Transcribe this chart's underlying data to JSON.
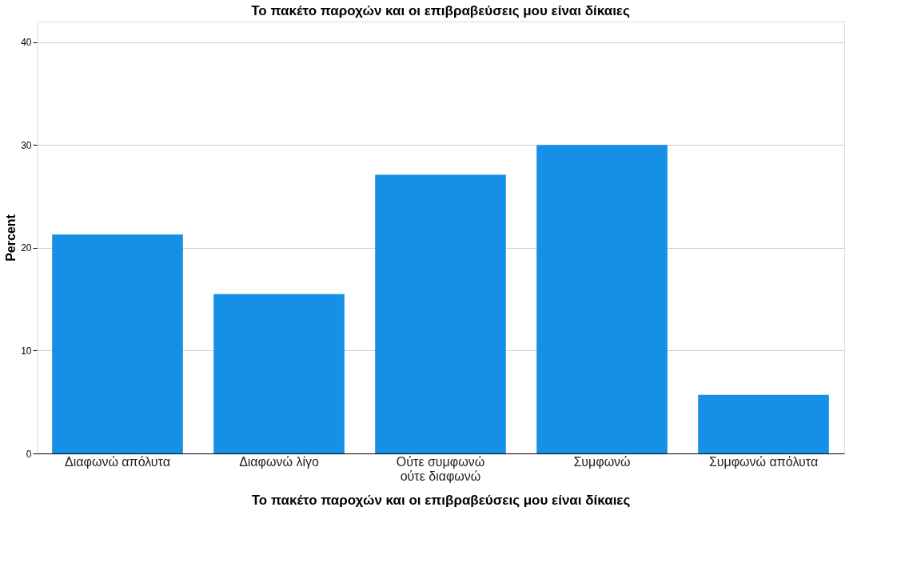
{
  "chart_data": {
    "type": "bar",
    "title": "Το πακέτο παροχών και οι επιβραβεύσεις μου είναι δίκαιες",
    "xlabel": "Το πακέτο παροχών και οι επιβραβεύσεις μου είναι δίκαιες",
    "ylabel": "Percent",
    "categories": [
      "Διαφωνώ απόλυτα",
      "Διαφωνώ λίγο",
      "Ούτε συμφωνώ ούτε διαφωνώ",
      "Συμφωνώ",
      "Συμφωνώ απόλυτα"
    ],
    "values": [
      21.3,
      15.5,
      27.1,
      30.0,
      5.7
    ],
    "color": "#1590e6",
    "ylim": [
      0,
      42
    ],
    "yticks": [
      0,
      10,
      20,
      30,
      40
    ],
    "grid": "y"
  }
}
